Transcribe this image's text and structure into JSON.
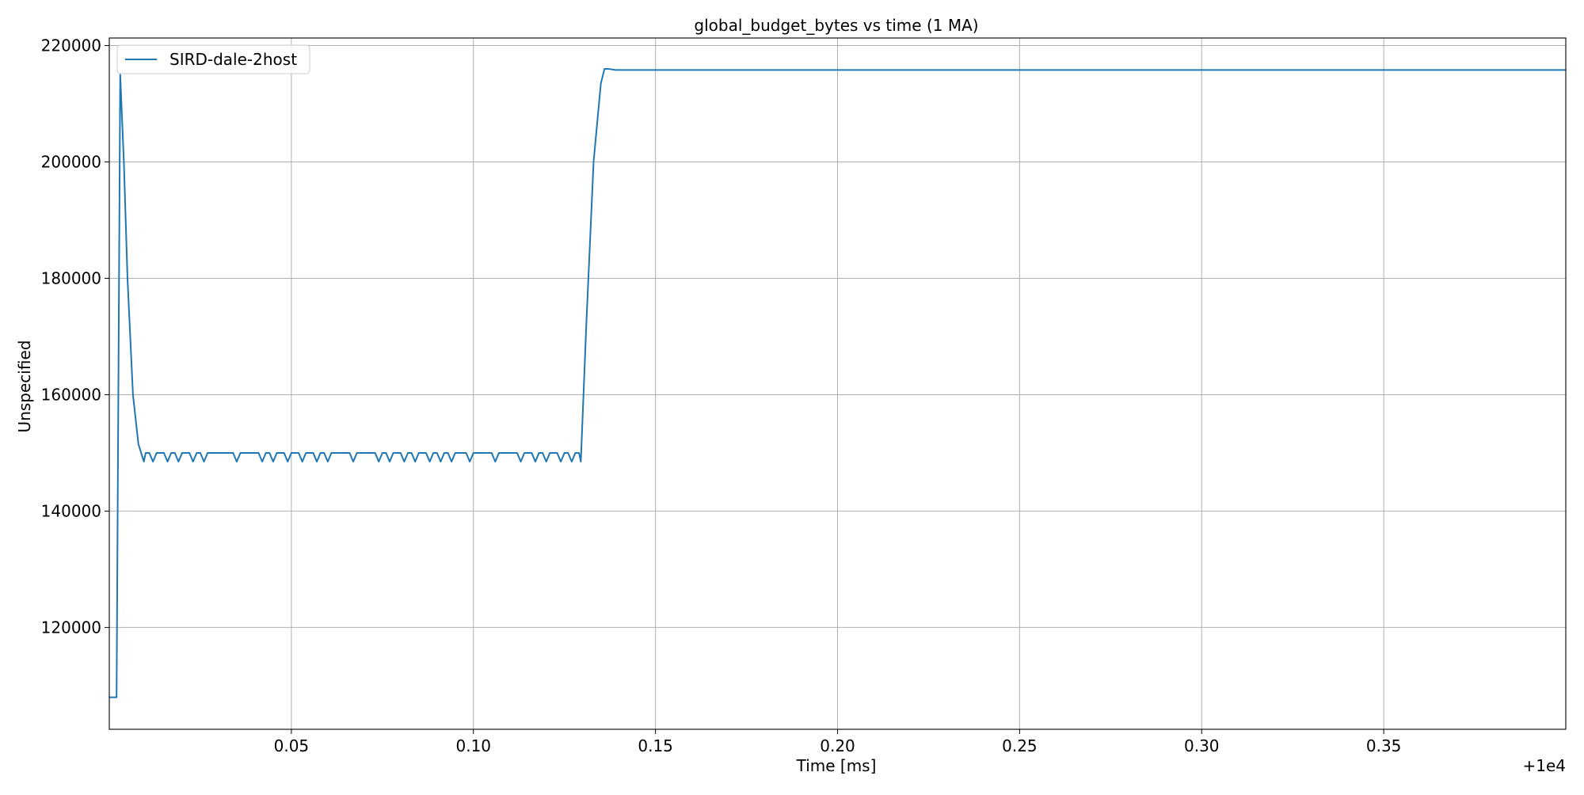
{
  "chart_data": {
    "type": "line",
    "title": "global_budget_bytes vs time (1 MA)",
    "xlabel": "Time [ms]",
    "ylabel": "Unspecified",
    "x_offset_label": "+1e4",
    "x_ticks": [
      0.05,
      0.1,
      0.15,
      0.2,
      0.25,
      0.3,
      0.35
    ],
    "x_tick_labels": [
      "0.05",
      "0.10",
      "0.15",
      "0.20",
      "0.25",
      "0.30",
      "0.35"
    ],
    "y_ticks": [
      120000,
      140000,
      160000,
      180000,
      200000,
      220000
    ],
    "y_tick_labels": [
      "120000",
      "140000",
      "160000",
      "180000",
      "200000",
      "220000"
    ],
    "xlim": [
      0.0,
      0.4
    ],
    "ylim": [
      102500,
      221300
    ],
    "grid": true,
    "legend_position": "upper-left",
    "colors": {
      "series": "#1f77b4",
      "grid": "#b0b0b0",
      "axes": "#000000"
    },
    "series": [
      {
        "name": "SIRD-dale-2host",
        "x": [
          0.0,
          0.002,
          0.003,
          0.004,
          0.005,
          0.0065,
          0.008,
          0.0085,
          0.0095,
          0.01,
          0.011,
          0.012,
          0.013,
          0.014,
          0.015,
          0.016,
          0.017,
          0.018,
          0.019,
          0.02,
          0.021,
          0.022,
          0.023,
          0.024,
          0.025,
          0.026,
          0.027,
          0.028,
          0.029,
          0.03,
          0.031,
          0.032,
          0.033,
          0.034,
          0.035,
          0.036,
          0.037,
          0.038,
          0.039,
          0.04,
          0.041,
          0.042,
          0.043,
          0.044,
          0.045,
          0.046,
          0.047,
          0.048,
          0.049,
          0.05,
          0.051,
          0.052,
          0.053,
          0.054,
          0.055,
          0.056,
          0.057,
          0.058,
          0.059,
          0.06,
          0.061,
          0.062,
          0.063,
          0.064,
          0.065,
          0.066,
          0.067,
          0.068,
          0.069,
          0.07,
          0.071,
          0.072,
          0.073,
          0.074,
          0.075,
          0.076,
          0.077,
          0.078,
          0.079,
          0.08,
          0.081,
          0.082,
          0.083,
          0.084,
          0.085,
          0.086,
          0.087,
          0.088,
          0.089,
          0.09,
          0.091,
          0.092,
          0.093,
          0.094,
          0.095,
          0.096,
          0.097,
          0.098,
          0.099,
          0.1,
          0.101,
          0.102,
          0.103,
          0.104,
          0.105,
          0.106,
          0.107,
          0.108,
          0.109,
          0.11,
          0.111,
          0.112,
          0.113,
          0.114,
          0.115,
          0.116,
          0.117,
          0.118,
          0.119,
          0.12,
          0.121,
          0.122,
          0.123,
          0.124,
          0.125,
          0.126,
          0.127,
          0.128,
          0.129,
          0.1295,
          0.131,
          0.133,
          0.135,
          0.136,
          0.137,
          0.139,
          0.15,
          0.2,
          0.25,
          0.3,
          0.35,
          0.4
        ],
        "y": [
          108000,
          108000,
          215000,
          200000,
          180000,
          160000,
          151500,
          150500,
          148500,
          150000,
          150000,
          148500,
          150000,
          150000,
          150000,
          148500,
          150000,
          150000,
          148500,
          150000,
          150000,
          150000,
          148500,
          150000,
          150000,
          148500,
          150000,
          150000,
          150000,
          150000,
          150000,
          150000,
          150000,
          150000,
          148500,
          150000,
          150000,
          150000,
          150000,
          150000,
          150000,
          148500,
          150000,
          150000,
          148500,
          150000,
          150000,
          150000,
          148500,
          150000,
          150000,
          150000,
          148500,
          150000,
          150000,
          150000,
          148500,
          150000,
          150000,
          148500,
          150000,
          150000,
          150000,
          150000,
          150000,
          150000,
          148500,
          150000,
          150000,
          150000,
          150000,
          150000,
          150000,
          148500,
          150000,
          150000,
          148500,
          150000,
          150000,
          150000,
          148500,
          150000,
          150000,
          148500,
          150000,
          150000,
          150000,
          148500,
          150000,
          150000,
          148500,
          150000,
          150000,
          148500,
          150000,
          150000,
          150000,
          150000,
          148500,
          150000,
          150000,
          150000,
          150000,
          150000,
          150000,
          148500,
          150000,
          150000,
          150000,
          150000,
          150000,
          150000,
          148500,
          150000,
          150000,
          150000,
          148500,
          150000,
          150000,
          148500,
          150000,
          150000,
          150000,
          148500,
          150000,
          150000,
          148500,
          150000,
          150000,
          148500,
          172000,
          200000,
          213500,
          216000,
          216000,
          215800,
          215800,
          215800,
          215800,
          215800,
          215800,
          215800
        ]
      }
    ]
  }
}
